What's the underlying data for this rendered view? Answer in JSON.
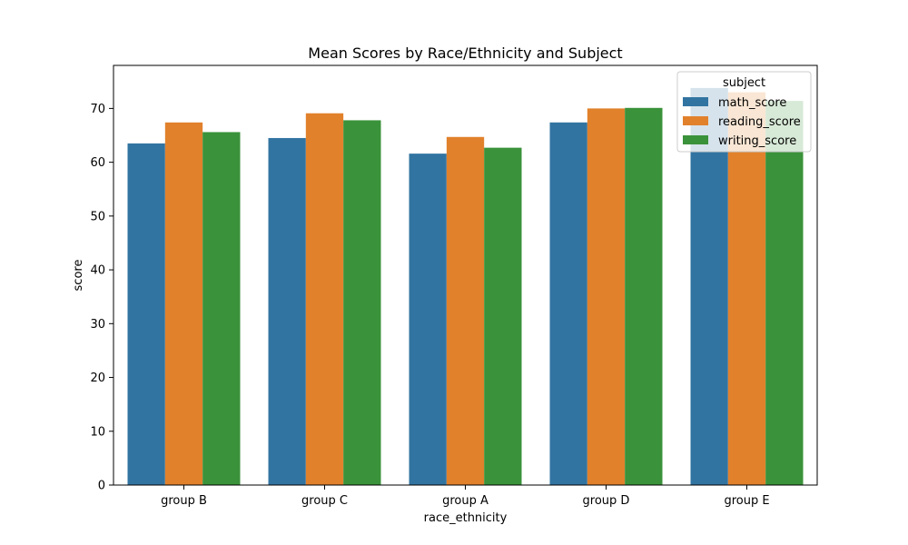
{
  "chart_data": {
    "type": "bar",
    "title": "Mean Scores by Race/Ethnicity and Subject",
    "xlabel": "race_ethnicity",
    "ylabel": "score",
    "categories": [
      "group B",
      "group C",
      "group A",
      "group D",
      "group E"
    ],
    "series": [
      {
        "name": "math_score",
        "color": "#3274a1",
        "values": [
          63.5,
          64.5,
          61.6,
          67.4,
          73.8
        ]
      },
      {
        "name": "reading_score",
        "color": "#e1812c",
        "values": [
          67.4,
          69.1,
          64.7,
          70.0,
          73.0
        ]
      },
      {
        "name": "writing_score",
        "color": "#3a923a",
        "values": [
          65.6,
          67.8,
          62.7,
          70.1,
          71.4
        ]
      }
    ],
    "ylim": [
      0,
      78
    ],
    "yticks": [
      0,
      10,
      20,
      30,
      40,
      50,
      60,
      70
    ],
    "grid": false,
    "legend": {
      "title": "subject",
      "position": "top-right"
    }
  }
}
